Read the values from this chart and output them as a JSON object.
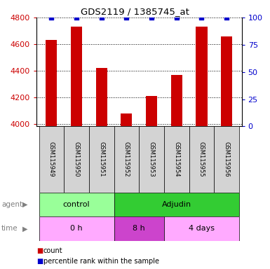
{
  "title": "GDS2119 / 1385745_at",
  "samples": [
    "GSM115949",
    "GSM115950",
    "GSM115951",
    "GSM115952",
    "GSM115953",
    "GSM115954",
    "GSM115955",
    "GSM115956"
  ],
  "counts": [
    4630,
    4730,
    4420,
    4080,
    4210,
    4370,
    4730,
    4660
  ],
  "percentiles": [
    100,
    100,
    100,
    100,
    100,
    100,
    100,
    100
  ],
  "ylim_left": [
    3980,
    4800
  ],
  "ylim_right": [
    0,
    100
  ],
  "yticks_left": [
    4000,
    4200,
    4400,
    4600,
    4800
  ],
  "yticks_right": [
    0,
    25,
    50,
    75,
    100
  ],
  "bar_color": "#cc0000",
  "dot_color": "#0000cc",
  "agent_groups": [
    {
      "label": "control",
      "start": 0,
      "end": 3,
      "color": "#99ff99"
    },
    {
      "label": "Adjudin",
      "start": 3,
      "end": 8,
      "color": "#33cc33"
    }
  ],
  "time_groups": [
    {
      "label": "0 h",
      "start": 0,
      "end": 3,
      "color": "#ffaaff"
    },
    {
      "label": "8 h",
      "start": 3,
      "end": 5,
      "color": "#cc44cc"
    },
    {
      "label": "4 days",
      "start": 5,
      "end": 8,
      "color": "#ffaaff"
    }
  ],
  "legend_count_color": "#cc0000",
  "legend_pct_color": "#0000cc",
  "background_color": "#ffffff",
  "tick_label_color_left": "#cc0000",
  "tick_label_color_right": "#0000cc"
}
